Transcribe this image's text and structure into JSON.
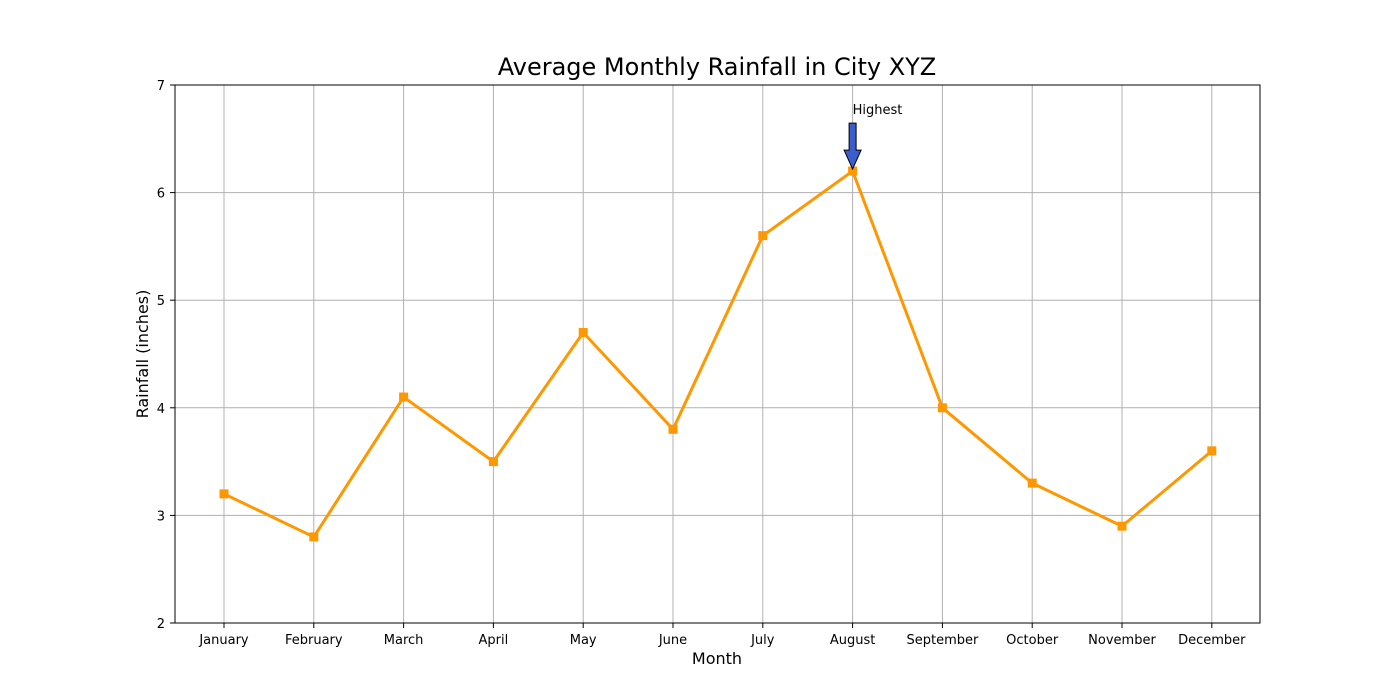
{
  "chart_data": {
    "type": "line",
    "title": "Average Monthly Rainfall in City XYZ",
    "xlabel": "Month",
    "ylabel": "Rainfall (inches)",
    "categories": [
      "January",
      "February",
      "March",
      "April",
      "May",
      "June",
      "July",
      "August",
      "September",
      "October",
      "November",
      "December"
    ],
    "series": [
      {
        "values": [
          3.2,
          2.8,
          4.1,
          3.5,
          4.7,
          3.8,
          5.6,
          6.2,
          4.0,
          3.3,
          2.9,
          3.6
        ],
        "color": "#ff9800",
        "marker": "square"
      }
    ],
    "ylim": [
      2,
      7
    ],
    "yticks": [
      2,
      3,
      4,
      5,
      6,
      7
    ],
    "grid": true,
    "legend": "none",
    "annotation": {
      "text": "Highest",
      "category": "August",
      "value": 6.2,
      "arrow_color": "#3a5fcd"
    }
  }
}
